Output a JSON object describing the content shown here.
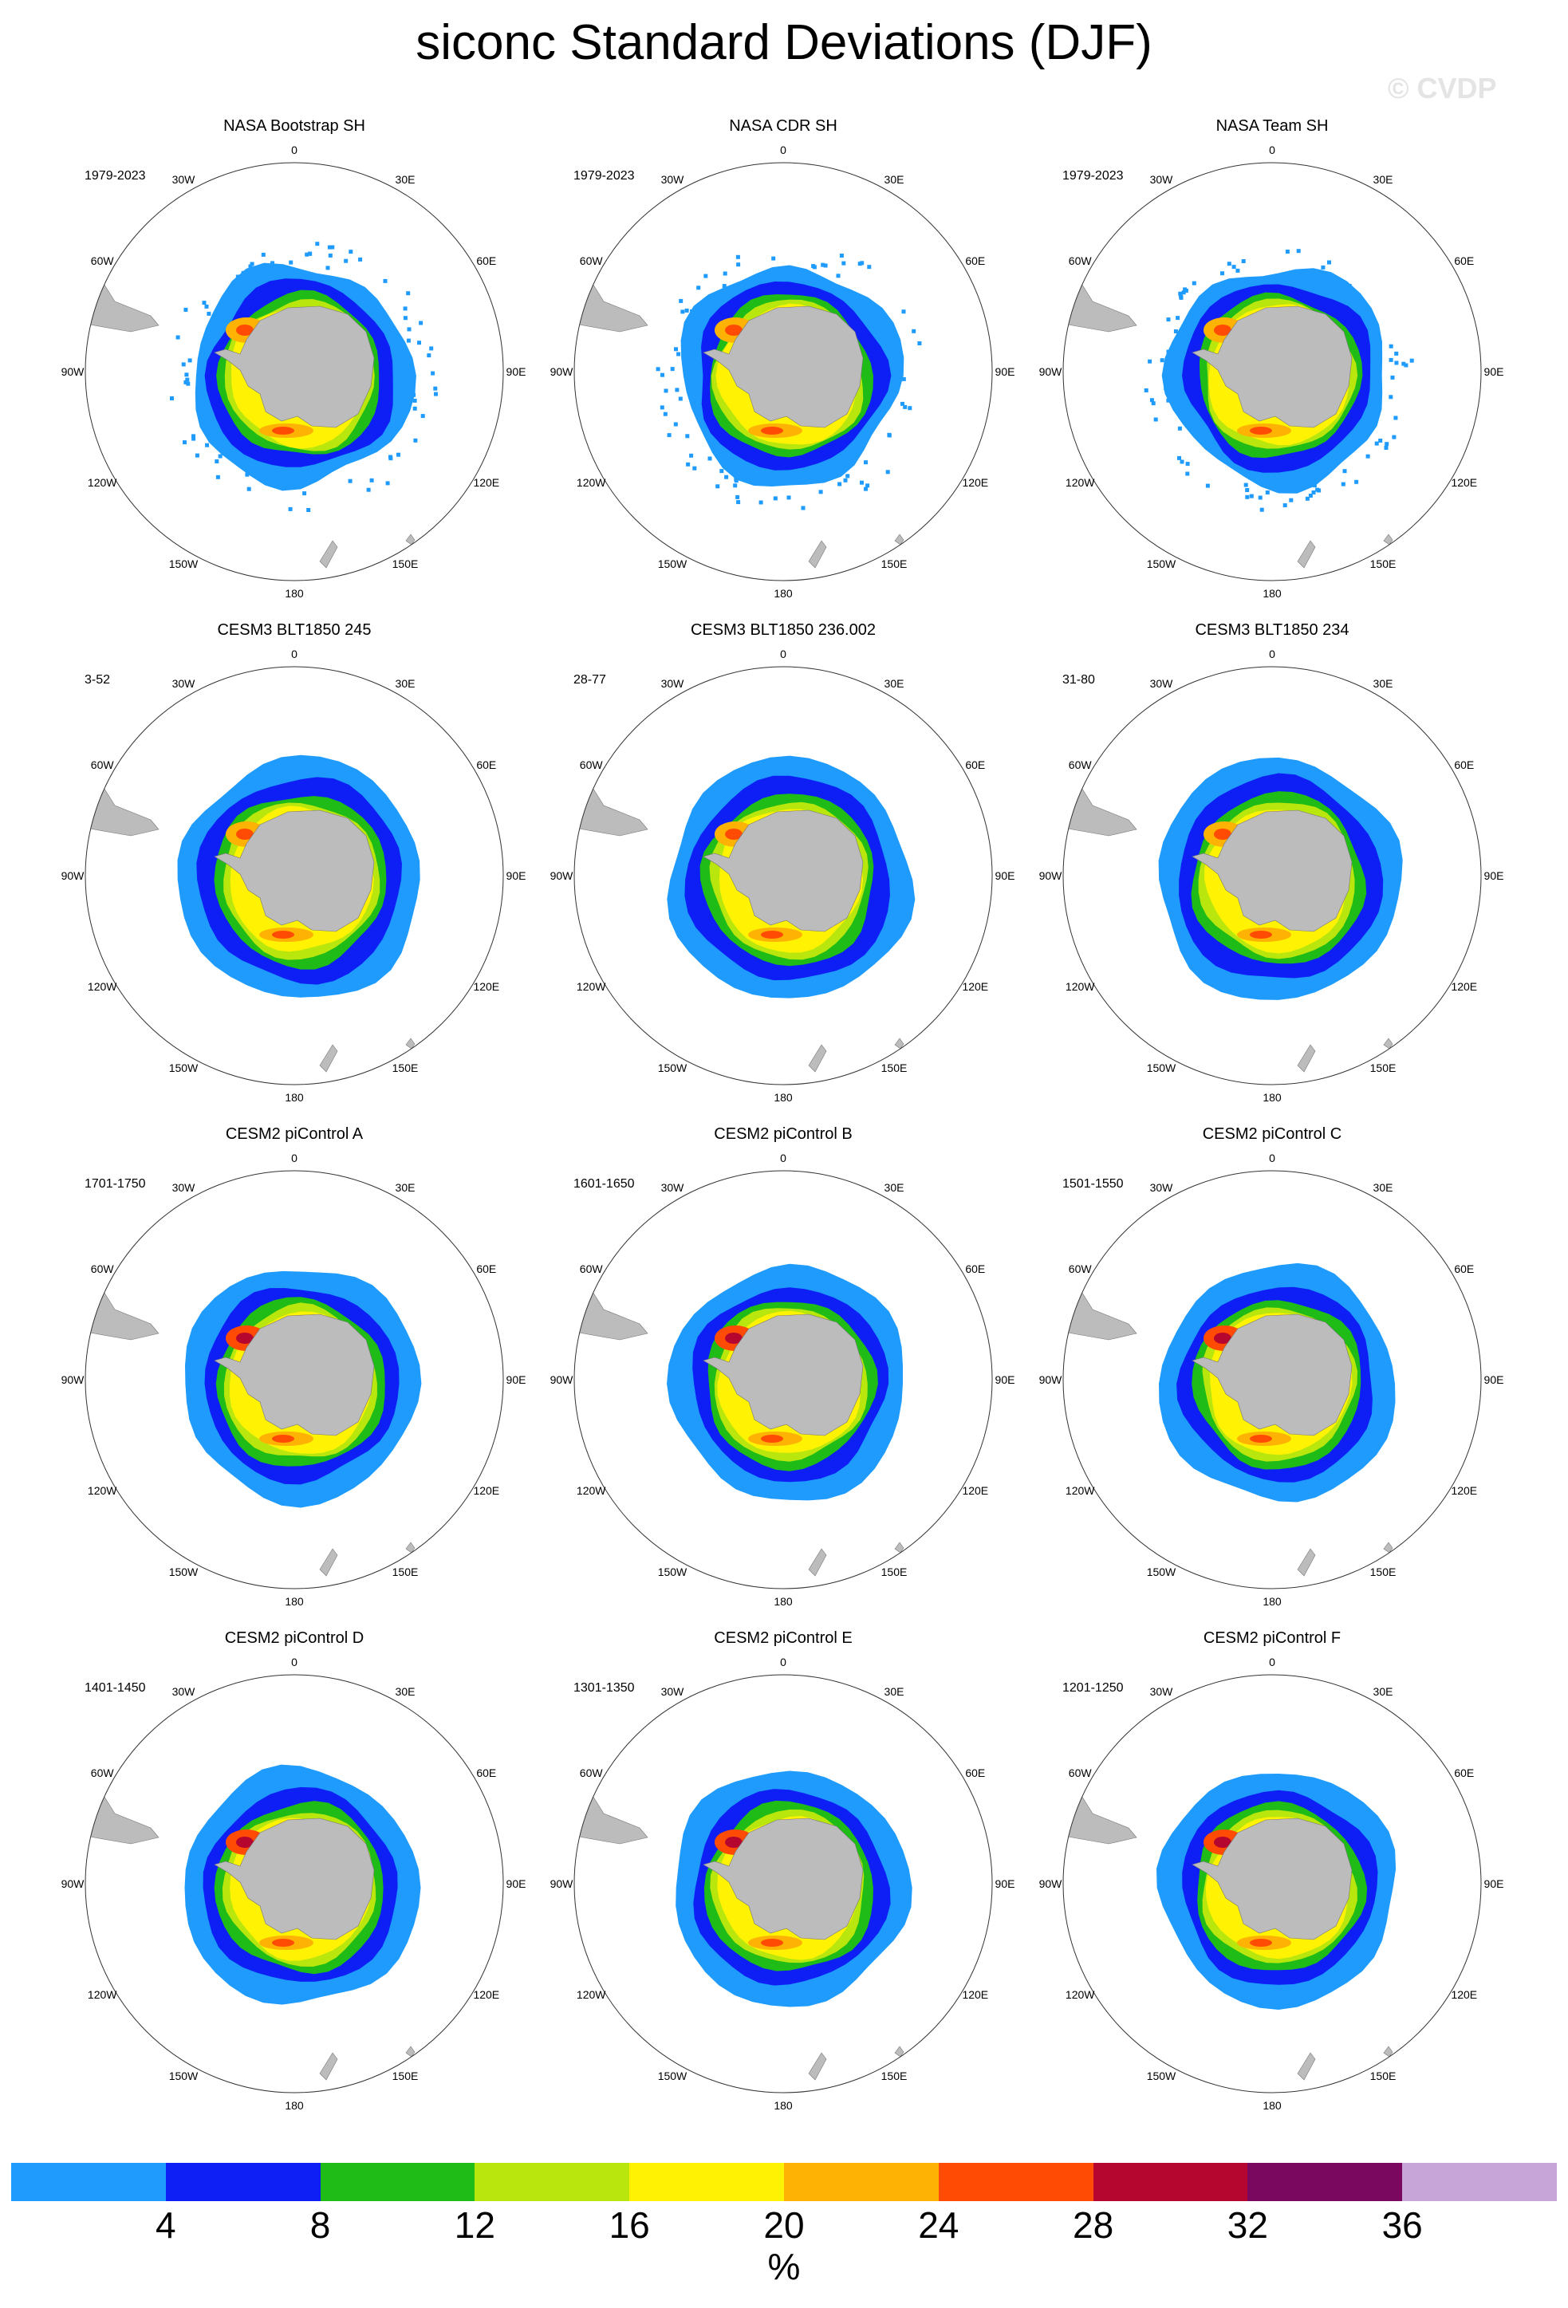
{
  "title": "siconc Standard Deviations (DJF)",
  "watermark": "© CVDP",
  "longitude_labels": [
    "0",
    "30E",
    "60E",
    "90E",
    "120E",
    "150E",
    "180",
    "150W",
    "120W",
    "90W",
    "60W",
    "30W"
  ],
  "panels": [
    {
      "title": "NASA Bootstrap SH",
      "period": "1979-2023",
      "style": "obs"
    },
    {
      "title": "NASA CDR SH",
      "period": "1979-2023",
      "style": "obs"
    },
    {
      "title": "NASA Team SH",
      "period": "1979-2023",
      "style": "obs"
    },
    {
      "title": "CESM3 BLT1850 245",
      "period": "3-52",
      "style": "cesm3"
    },
    {
      "title": "CESM3 BLT1850 236.002",
      "period": "28-77",
      "style": "cesm3"
    },
    {
      "title": "CESM3 BLT1850 234",
      "period": "31-80",
      "style": "cesm3"
    },
    {
      "title": "CESM2 piControl A",
      "period": "1701-1750",
      "style": "cesm2"
    },
    {
      "title": "CESM2 piControl B",
      "period": "1601-1650",
      "style": "cesm2"
    },
    {
      "title": "CESM2 piControl C",
      "period": "1501-1550",
      "style": "cesm2"
    },
    {
      "title": "CESM2 piControl D",
      "period": "1401-1450",
      "style": "cesm2"
    },
    {
      "title": "CESM2 piControl E",
      "period": "1301-1350",
      "style": "cesm2"
    },
    {
      "title": "CESM2 piControl F",
      "period": "1201-1250",
      "style": "cesm2"
    }
  ],
  "colorbar": {
    "colors": [
      "#1e9bfc",
      "#0d1ff5",
      "#1fbb17",
      "#b9e60c",
      "#fff303",
      "#feb304",
      "#ff4b03",
      "#b5062f",
      "#7b085f",
      "#c7a5d9"
    ],
    "ticks": [
      "4",
      "8",
      "12",
      "16",
      "20",
      "24",
      "28",
      "32",
      "36"
    ],
    "unit": "%"
  },
  "land_color": "#bcbcbc"
}
